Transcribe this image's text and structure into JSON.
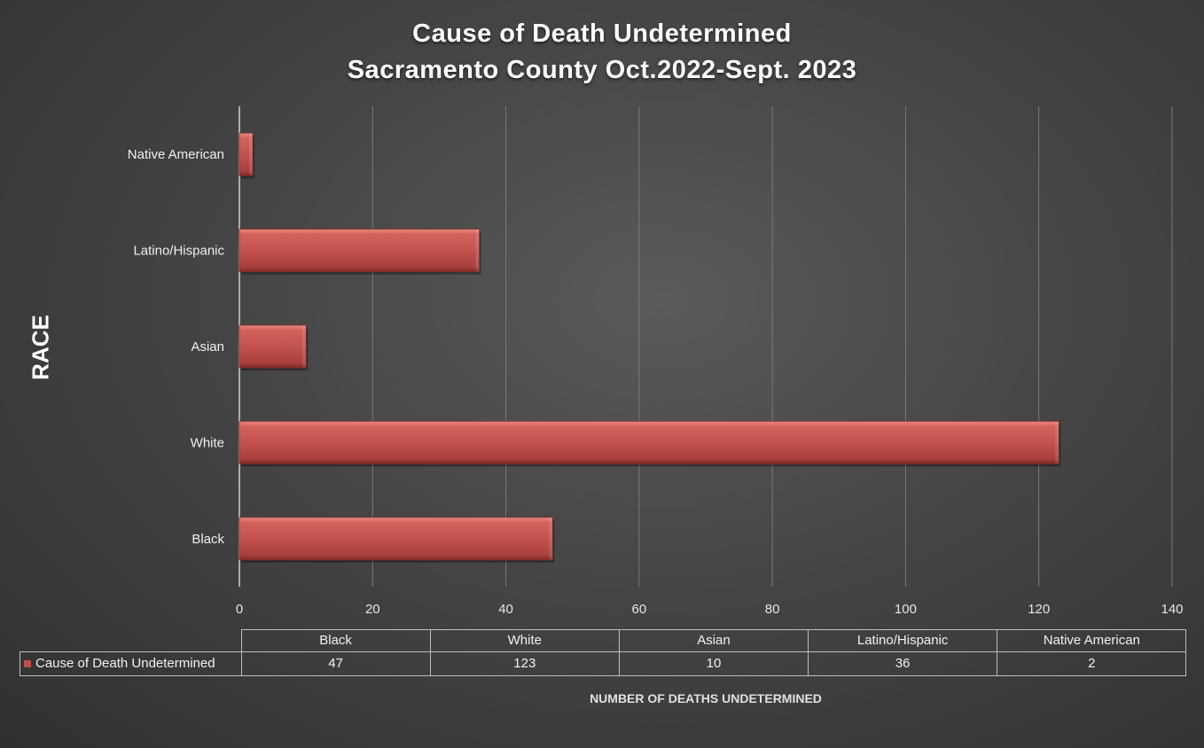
{
  "chart_data": {
    "type": "bar",
    "orientation": "horizontal",
    "title": [
      "Cause of Death Undetermined",
      "Sacramento County Oct.2022-Sept. 2023"
    ],
    "xlabel": "NUMBER OF DEATHS UNDETERMINED",
    "ylabel": "RACE",
    "categories": [
      "Black",
      "White",
      "Asian",
      "Latino/Hispanic",
      "Native American"
    ],
    "series": [
      {
        "name": "Cause of Death Undetermined",
        "values": [
          47,
          123,
          10,
          36,
          2
        ]
      }
    ],
    "xlim": [
      0,
      140
    ],
    "xticks": [
      0,
      20,
      40,
      60,
      80,
      100,
      120,
      140
    ],
    "grid": true,
    "data_table": true,
    "colors": {
      "bar": "#c0504d",
      "bar_light": "#e07a72",
      "bar_dark": "#8e2f2b",
      "grid": "#7a7a7a"
    }
  }
}
